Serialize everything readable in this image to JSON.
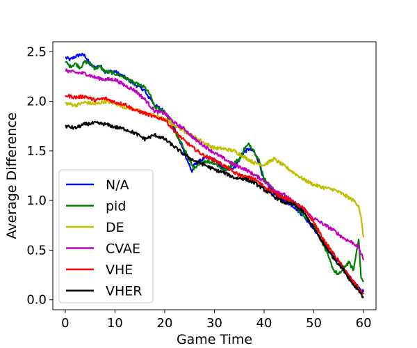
{
  "chart_data": {
    "type": "line",
    "title": "",
    "xlabel": "Game Time",
    "ylabel": "Average Difference",
    "xlim": [
      -2.5,
      62.5
    ],
    "ylim": [
      -0.1,
      2.6
    ],
    "xticks": [
      0,
      10,
      20,
      30,
      40,
      50,
      60
    ],
    "yticks": [
      0.0,
      0.5,
      1.0,
      1.5,
      2.0,
      2.5
    ],
    "xtick_labels": [
      "0",
      "10",
      "20",
      "30",
      "40",
      "50",
      "60"
    ],
    "ytick_labels": [
      "0.0",
      "0.5",
      "1.0",
      "1.5",
      "2.0",
      "2.5"
    ],
    "grid": false,
    "legend_position": "lower-left",
    "series": [
      {
        "name": "N/A",
        "color": "#0000ff",
        "points": [
          [
            0,
            2.44
          ],
          [
            1,
            2.42
          ],
          [
            2,
            2.45
          ],
          [
            3,
            2.47
          ],
          [
            4,
            2.46
          ],
          [
            5,
            2.37
          ],
          [
            6,
            2.34
          ],
          [
            7,
            2.36
          ],
          [
            8,
            2.3
          ],
          [
            10,
            2.3
          ],
          [
            12,
            2.24
          ],
          [
            14,
            2.17
          ],
          [
            16,
            2.11
          ],
          [
            16.5,
            2.05
          ],
          [
            17,
            2.04
          ],
          [
            18,
            1.96
          ],
          [
            20,
            1.9
          ],
          [
            21,
            1.82
          ],
          [
            22,
            1.72
          ],
          [
            23,
            1.6
          ],
          [
            24,
            1.48
          ],
          [
            25,
            1.35
          ],
          [
            25.5,
            1.29
          ],
          [
            26,
            1.36
          ],
          [
            28,
            1.43
          ],
          [
            30,
            1.41
          ],
          [
            32,
            1.31
          ],
          [
            34,
            1.33
          ],
          [
            36,
            1.49
          ],
          [
            37,
            1.52
          ],
          [
            38,
            1.49
          ],
          [
            39,
            1.38
          ],
          [
            40,
            1.2
          ],
          [
            42,
            1.08
          ],
          [
            44,
            1.0
          ],
          [
            46,
            0.94
          ],
          [
            48,
            0.84
          ],
          [
            50,
            0.72
          ],
          [
            52,
            0.56
          ],
          [
            54,
            0.43
          ],
          [
            56,
            0.32
          ],
          [
            57,
            0.24
          ],
          [
            58,
            0.18
          ],
          [
            59,
            0.12
          ],
          [
            59.5,
            0.1
          ],
          [
            60,
            0.08
          ]
        ]
      },
      {
        "name": "pid",
        "color": "#008000",
        "points": [
          [
            0,
            2.4
          ],
          [
            1,
            2.35
          ],
          [
            2,
            2.38
          ],
          [
            3,
            2.34
          ],
          [
            4,
            2.4
          ],
          [
            5,
            2.38
          ],
          [
            6,
            2.33
          ],
          [
            7,
            2.35
          ],
          [
            8,
            2.3
          ],
          [
            10,
            2.28
          ],
          [
            12,
            2.24
          ],
          [
            14,
            2.18
          ],
          [
            16,
            2.14
          ],
          [
            17,
            2.07
          ],
          [
            18,
            1.94
          ],
          [
            20,
            1.9
          ],
          [
            21,
            1.8
          ],
          [
            22,
            1.7
          ],
          [
            23,
            1.6
          ],
          [
            24,
            1.52
          ],
          [
            25,
            1.4
          ],
          [
            26,
            1.32
          ],
          [
            28,
            1.4
          ],
          [
            30,
            1.38
          ],
          [
            32,
            1.3
          ],
          [
            34,
            1.38
          ],
          [
            35,
            1.42
          ],
          [
            36,
            1.52
          ],
          [
            37,
            1.57
          ],
          [
            38,
            1.5
          ],
          [
            39,
            1.4
          ],
          [
            40,
            1.22
          ],
          [
            42,
            1.1
          ],
          [
            44,
            1.03
          ],
          [
            46,
            0.96
          ],
          [
            48,
            0.85
          ],
          [
            50,
            0.75
          ],
          [
            52,
            0.55
          ],
          [
            53,
            0.42
          ],
          [
            54,
            0.3
          ],
          [
            55,
            0.25
          ],
          [
            56,
            0.32
          ],
          [
            57,
            0.38
          ],
          [
            58,
            0.3
          ],
          [
            59,
            0.62
          ],
          [
            59.5,
            0.22
          ],
          [
            60,
            0.18
          ]
        ]
      },
      {
        "name": "DE",
        "color": "#bfbf00",
        "points": [
          [
            0,
            1.98
          ],
          [
            2,
            1.96
          ],
          [
            4,
            1.99
          ],
          [
            6,
            1.97
          ],
          [
            8,
            2.0
          ],
          [
            10,
            1.98
          ],
          [
            12,
            1.94
          ],
          [
            14,
            1.92
          ],
          [
            16,
            1.88
          ],
          [
            18,
            1.86
          ],
          [
            20,
            1.82
          ],
          [
            22,
            1.76
          ],
          [
            24,
            1.7
          ],
          [
            26,
            1.64
          ],
          [
            28,
            1.58
          ],
          [
            30,
            1.53
          ],
          [
            32,
            1.52
          ],
          [
            34,
            1.5
          ],
          [
            36,
            1.44
          ],
          [
            38,
            1.38
          ],
          [
            40,
            1.36
          ],
          [
            42,
            1.42
          ],
          [
            44,
            1.35
          ],
          [
            46,
            1.28
          ],
          [
            48,
            1.21
          ],
          [
            50,
            1.16
          ],
          [
            52,
            1.13
          ],
          [
            54,
            1.11
          ],
          [
            56,
            1.06
          ],
          [
            58,
            1.0
          ],
          [
            59,
            0.95
          ],
          [
            59.5,
            0.82
          ],
          [
            60,
            0.63
          ]
        ]
      },
      {
        "name": "CVAE",
        "color": "#bf00bf",
        "points": [
          [
            0,
            2.31
          ],
          [
            2,
            2.29
          ],
          [
            4,
            2.28
          ],
          [
            6,
            2.24
          ],
          [
            8,
            2.22
          ],
          [
            10,
            2.22
          ],
          [
            12,
            2.16
          ],
          [
            14,
            2.11
          ],
          [
            16,
            2.02
          ],
          [
            18,
            1.9
          ],
          [
            20,
            1.88
          ],
          [
            22,
            1.78
          ],
          [
            24,
            1.72
          ],
          [
            26,
            1.62
          ],
          [
            28,
            1.55
          ],
          [
            30,
            1.48
          ],
          [
            32,
            1.42
          ],
          [
            34,
            1.36
          ],
          [
            36,
            1.32
          ],
          [
            38,
            1.26
          ],
          [
            40,
            1.2
          ],
          [
            42,
            1.11
          ],
          [
            44,
            1.06
          ],
          [
            46,
            0.98
          ],
          [
            48,
            0.9
          ],
          [
            50,
            0.82
          ],
          [
            52,
            0.76
          ],
          [
            54,
            0.7
          ],
          [
            56,
            0.62
          ],
          [
            58,
            0.57
          ],
          [
            59,
            0.53
          ],
          [
            59.5,
            0.46
          ],
          [
            60,
            0.4
          ]
        ]
      },
      {
        "name": "VHE",
        "color": "#ff0000",
        "points": [
          [
            0,
            2.06
          ],
          [
            2,
            2.04
          ],
          [
            4,
            2.05
          ],
          [
            6,
            2.01
          ],
          [
            8,
            2.03
          ],
          [
            10,
            1.99
          ],
          [
            12,
            1.97
          ],
          [
            14,
            1.91
          ],
          [
            16,
            1.88
          ],
          [
            18,
            1.84
          ],
          [
            20,
            1.82
          ],
          [
            22,
            1.7
          ],
          [
            24,
            1.6
          ],
          [
            26,
            1.52
          ],
          [
            28,
            1.45
          ],
          [
            30,
            1.41
          ],
          [
            32,
            1.35
          ],
          [
            34,
            1.28
          ],
          [
            36,
            1.24
          ],
          [
            38,
            1.22
          ],
          [
            40,
            1.14
          ],
          [
            42,
            1.08
          ],
          [
            44,
            1.03
          ],
          [
            46,
            0.98
          ],
          [
            48,
            0.92
          ],
          [
            50,
            0.78
          ],
          [
            52,
            0.6
          ],
          [
            54,
            0.46
          ],
          [
            56,
            0.32
          ],
          [
            57,
            0.24
          ],
          [
            58,
            0.18
          ],
          [
            59,
            0.12
          ],
          [
            59.5,
            0.08
          ],
          [
            60,
            0.06
          ]
        ]
      },
      {
        "name": "VHER",
        "color": "#000000",
        "points": [
          [
            0,
            1.75
          ],
          [
            2,
            1.73
          ],
          [
            4,
            1.77
          ],
          [
            6,
            1.78
          ],
          [
            8,
            1.77
          ],
          [
            10,
            1.74
          ],
          [
            12,
            1.72
          ],
          [
            14,
            1.68
          ],
          [
            16,
            1.62
          ],
          [
            18,
            1.66
          ],
          [
            20,
            1.62
          ],
          [
            22,
            1.54
          ],
          [
            24,
            1.46
          ],
          [
            26,
            1.4
          ],
          [
            28,
            1.36
          ],
          [
            30,
            1.31
          ],
          [
            32,
            1.28
          ],
          [
            34,
            1.23
          ],
          [
            36,
            1.22
          ],
          [
            38,
            1.18
          ],
          [
            40,
            1.11
          ],
          [
            42,
            1.04
          ],
          [
            44,
            0.98
          ],
          [
            46,
            0.96
          ],
          [
            48,
            0.88
          ],
          [
            50,
            0.72
          ],
          [
            52,
            0.56
          ],
          [
            54,
            0.42
          ],
          [
            56,
            0.3
          ],
          [
            57,
            0.22
          ],
          [
            58,
            0.15
          ],
          [
            59,
            0.1
          ],
          [
            59.5,
            0.06
          ],
          [
            60,
            0.02
          ]
        ]
      }
    ]
  }
}
